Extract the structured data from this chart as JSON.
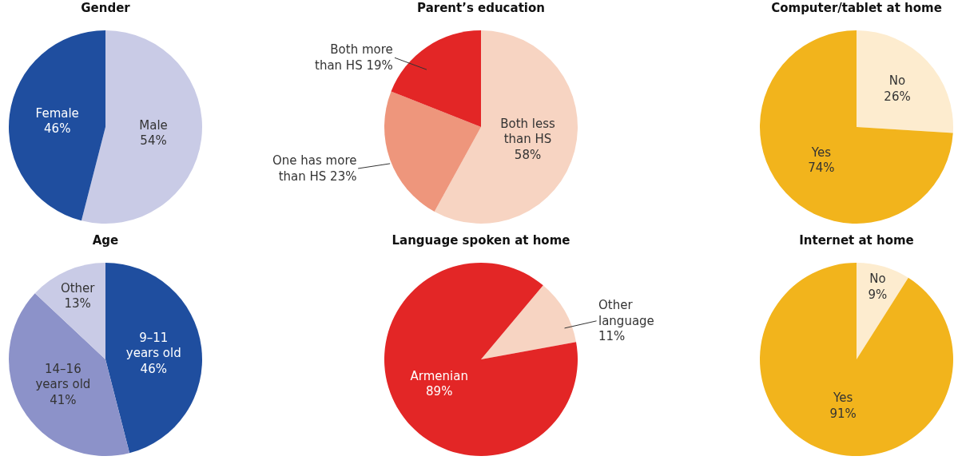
{
  "chart_data": [
    {
      "type": "pie",
      "title": "Gender",
      "categories": [
        "Male",
        "Female"
      ],
      "values": [
        54,
        46
      ],
      "value_labels": [
        "54%",
        "46%"
      ],
      "colors": [
        "#c9cbe6",
        "#1f4e9f"
      ]
    },
    {
      "type": "pie",
      "title": "Parent’s education",
      "categories": [
        "Both less than HS",
        "One has more than HS",
        "Both more than HS"
      ],
      "values": [
        58,
        23,
        19
      ],
      "value_labels": [
        "58%",
        "23%",
        "19%"
      ],
      "colors": [
        "#f7d4c2",
        "#ee967c",
        "#e32626"
      ]
    },
    {
      "type": "pie",
      "title": "Computer/tablet at home",
      "categories": [
        "No",
        "Yes"
      ],
      "values": [
        26,
        74
      ],
      "value_labels": [
        "26%",
        "74%"
      ],
      "colors": [
        "#fdeccf",
        "#f2b41c"
      ]
    },
    {
      "type": "pie",
      "title": "Age",
      "categories": [
        "9–11 years old",
        "14–16 years old",
        "Other"
      ],
      "values": [
        46,
        41,
        13
      ],
      "value_labels": [
        "46%",
        "41%",
        "13%"
      ],
      "colors": [
        "#1f4e9f",
        "#8c92c9",
        "#c9cbe6"
      ]
    },
    {
      "type": "pie",
      "title": "Language spoken at home",
      "categories": [
        "Other language",
        "Armenian"
      ],
      "values": [
        11,
        89
      ],
      "value_labels": [
        "11%",
        "89%"
      ],
      "colors": [
        "#f7d4c2",
        "#e32626"
      ]
    },
    {
      "type": "pie",
      "title": "Internet at home",
      "categories": [
        "No",
        "Yes"
      ],
      "values": [
        9,
        91
      ],
      "value_labels": [
        "9%",
        "91%"
      ],
      "colors": [
        "#fdeccf",
        "#f2b41c"
      ]
    }
  ]
}
